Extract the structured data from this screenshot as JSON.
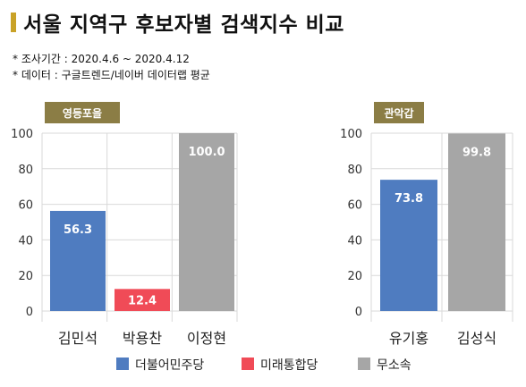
{
  "header": {
    "title": "서울 지역구 후보자별 검색지수 비교",
    "note1": "* 조사기간 : 2020.4.6  ~  2020.4.12",
    "note2": "* 데이터 : 구글트렌드/네이버  데이터랩 평균"
  },
  "colors": {
    "accent": "#c9a227",
    "group_badge": "#8b7d45",
    "party_blue": "#4f7cc0",
    "party_red": "#f04b57",
    "independent": "#a6a6a6",
    "grid": "#d9d9d9"
  },
  "chart_data": [
    {
      "type": "bar",
      "title": "영등포을",
      "categories": [
        "김민석",
        "박용찬",
        "이정현"
      ],
      "values": [
        56.3,
        12.4,
        100.0
      ],
      "value_labels": [
        "56.3",
        "12.4",
        "100.0"
      ],
      "colors": [
        "#4f7cc0",
        "#f04b57",
        "#a6a6a6"
      ],
      "ylim": [
        0,
        100
      ],
      "yticks": [
        "0",
        "20",
        "40",
        "60",
        "80",
        "100"
      ]
    },
    {
      "type": "bar",
      "title": "관악갑",
      "categories": [
        "유기홍",
        "김성식"
      ],
      "values": [
        73.8,
        99.8
      ],
      "value_labels": [
        "73.8",
        "99.8"
      ],
      "colors": [
        "#4f7cc0",
        "#a6a6a6"
      ],
      "ylim": [
        0,
        100
      ],
      "yticks": [
        "0",
        "20",
        "40",
        "60",
        "80",
        "100"
      ]
    }
  ],
  "legend": [
    {
      "label": "더불어민주당",
      "color": "#4f7cc0"
    },
    {
      "label": "미래통합당",
      "color": "#f04b57"
    },
    {
      "label": "무소속",
      "color": "#a6a6a6"
    }
  ]
}
